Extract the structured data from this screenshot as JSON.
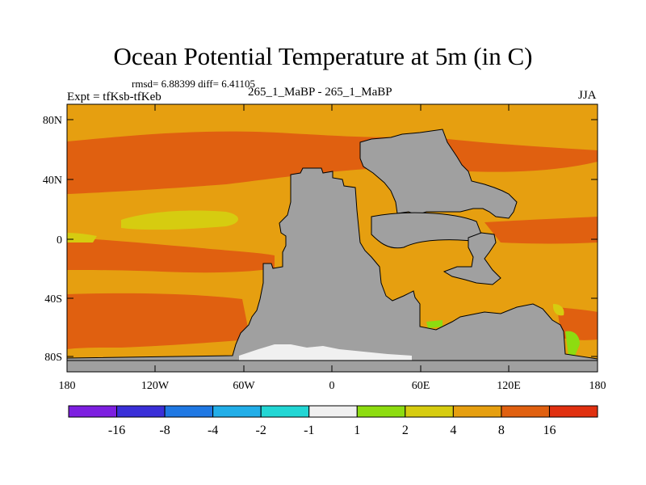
{
  "title": "Ocean Potential Temperature at 5m (in C)",
  "stats": "rmsd= 6.88399 diff= 6.41105",
  "left_label": "Expt = tfKsb-tfKeb",
  "center_label": "265_1_MaBP - 265_1_MaBP",
  "right_label": "JJA",
  "lat_labels": [
    "80N",
    "40N",
    "0",
    "40S",
    "80S"
  ],
  "lon_labels": [
    "180",
    "120W",
    "60W",
    "0",
    "60E",
    "120E",
    "180"
  ],
  "colorbar": {
    "colors": [
      "#7d1fe0",
      "#3a2fd8",
      "#1f78e3",
      "#22aee8",
      "#22d6d4",
      "#f0f0f0",
      "#8ddc10",
      "#d6cc10",
      "#e69f10",
      "#e06010",
      "#e03010"
    ],
    "labels": [
      "-16",
      "-8",
      "-4",
      "-2",
      "-1",
      "1",
      "2",
      "4",
      "8",
      "16"
    ]
  },
  "colors": {
    "land": "#a0a0a0",
    "ocean_warm": "#e69f10",
    "ocean_hot": "#e06010",
    "ocean_yellow": "#d6cc10",
    "ocean_green": "#8ddc10",
    "ice_white": "#f0f0f0",
    "ocean_red": "#e03010"
  }
}
